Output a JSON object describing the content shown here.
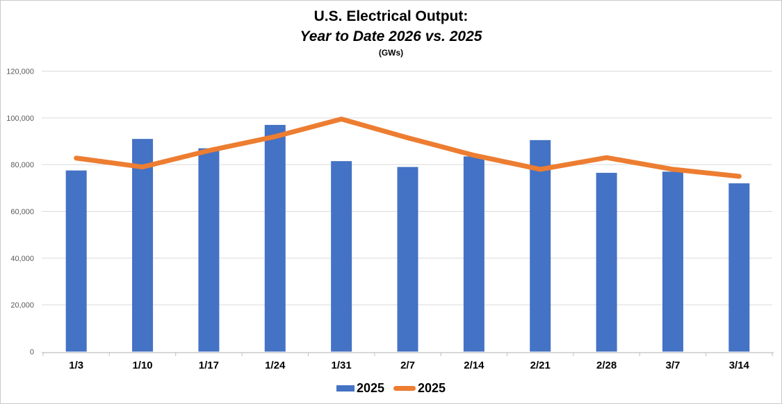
{
  "title": {
    "line1": "U.S. Electrical Output:",
    "line2": "Year to Date 2026 vs. 2025",
    "units": "(GWs)"
  },
  "legend": {
    "items": [
      {
        "label": "2025",
        "swatch": "bar",
        "color": "#4472C4"
      },
      {
        "label": "2025",
        "swatch": "line",
        "color": "#ED7D31"
      }
    ],
    "position": "bottom-center"
  },
  "colors": {
    "bar": "#4472C4",
    "line": "#ED7D31",
    "gridline": "#D9D9D9",
    "axis": "#BFBFBF",
    "y_label": "#595959",
    "x_label": "#000000",
    "border": "#C9C9C9",
    "background": "#FFFFFF"
  },
  "chart_data": {
    "type": "bar",
    "subtype": "bar-line-combo",
    "title": "U.S. Electrical Output: Year to Date 2026 vs. 2025 (GWs)",
    "categories": [
      "1/3",
      "1/10",
      "1/17",
      "1/24",
      "1/31",
      "2/7",
      "2/14",
      "2/21",
      "2/28",
      "3/7",
      "3/14"
    ],
    "series": [
      {
        "name": "2025",
        "render": "bar",
        "color": "#4472C4",
        "values": [
          77500,
          91000,
          87000,
          97000,
          81500,
          79000,
          83500,
          90500,
          76500,
          77000,
          72000
        ]
      },
      {
        "name": "2025",
        "render": "line",
        "color": "#ED7D31",
        "values": [
          82800,
          79000,
          86000,
          92000,
          99500,
          91500,
          84000,
          78000,
          83000,
          78000,
          75000
        ]
      }
    ],
    "xlabel": "",
    "ylabel": "",
    "ylim": [
      0,
      120000
    ],
    "ytick_step": 20000,
    "ytick_labels": [
      "0",
      "20,000",
      "40,000",
      "60,000",
      "80,000",
      "100,000",
      "120,000"
    ],
    "grid": true,
    "legend_position": "bottom"
  }
}
